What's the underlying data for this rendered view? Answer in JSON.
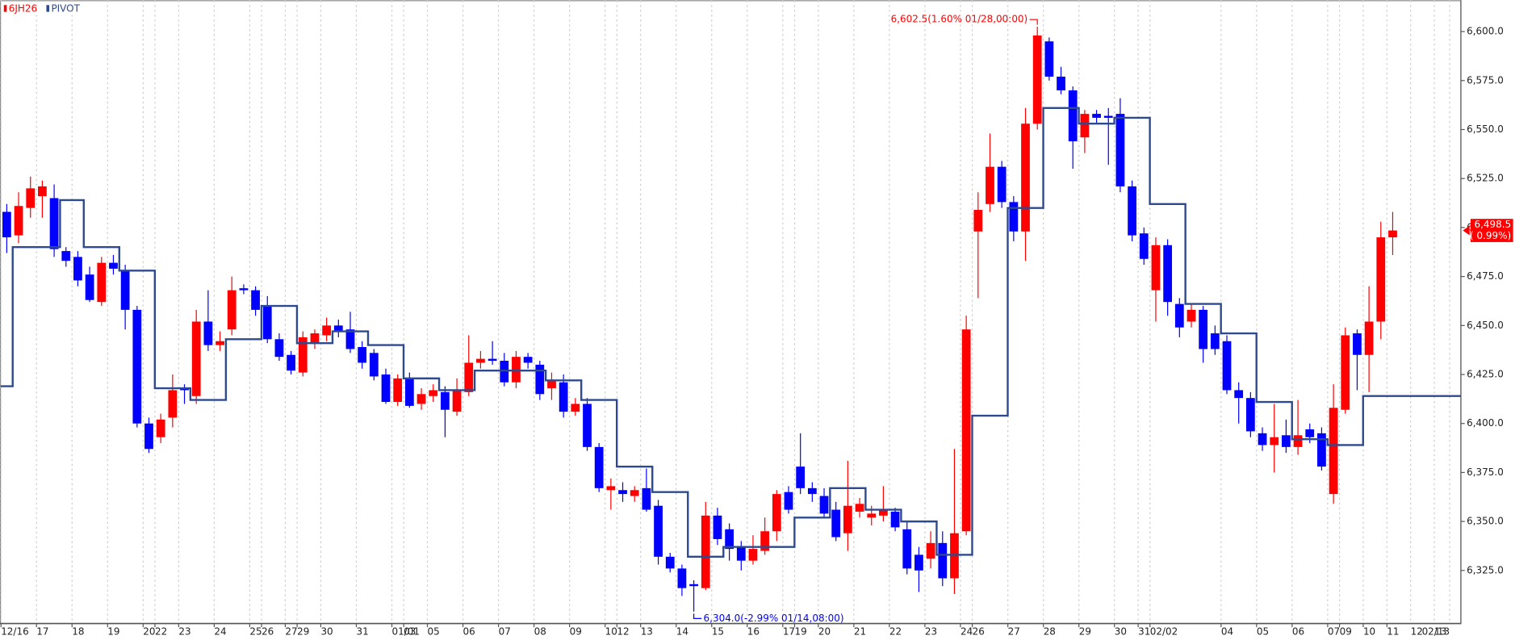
{
  "chart_data": {
    "type": "candlestick",
    "ylim": [
      6298,
      6616
    ],
    "yticks": [
      {
        "value": 6325,
        "label": "6,325.0"
      },
      {
        "value": 6350,
        "label": "6,350.0"
      },
      {
        "value": 6375,
        "label": "6,375.0"
      },
      {
        "value": 6400,
        "label": "6,400.0"
      },
      {
        "value": 6425,
        "label": "6,425.0"
      },
      {
        "value": 6450,
        "label": "6,450.0"
      },
      {
        "value": 6475,
        "label": "6,475.0"
      },
      {
        "value": 6500,
        "label": "6,500.0"
      },
      {
        "value": 6525,
        "label": "6,525.0"
      },
      {
        "value": 6550,
        "label": "6,550.0"
      },
      {
        "value": 6575,
        "label": "6,575.0"
      },
      {
        "value": 6600,
        "label": "6,600.0"
      }
    ],
    "up_color": "#ff0000",
    "down_color": "#0000ff",
    "categories": [
      "12/16",
      null,
      null,
      "17",
      null,
      null,
      "18",
      null,
      null,
      "19",
      null,
      null,
      "20",
      "22",
      null,
      "23",
      null,
      null,
      "24",
      null,
      null,
      "25",
      "26",
      null,
      "27",
      "29",
      null,
      "30",
      null,
      null,
      "31",
      null,
      null,
      "01/01",
      "03",
      null,
      "05",
      null,
      null,
      "06",
      null,
      null,
      "07",
      null,
      null,
      "08",
      null,
      null,
      "09",
      null,
      null,
      "10",
      "12",
      null,
      "13",
      null,
      null,
      "14",
      null,
      null,
      "15",
      null,
      null,
      "16",
      null,
      null,
      "17",
      "19",
      null,
      "20",
      null,
      null,
      "21",
      null,
      null,
      "22",
      null,
      null,
      "23",
      null,
      null,
      "24",
      "26",
      null,
      null,
      "27",
      null,
      null,
      "28",
      null,
      null,
      "29",
      null,
      null,
      "30",
      null,
      "31",
      "02/02",
      null,
      null,
      null,
      null,
      null,
      "04",
      null,
      null,
      "05",
      null,
      null,
      "06",
      null,
      null,
      "07",
      "09",
      null,
      "10",
      null,
      "11"
    ],
    "future_categories": [
      "12",
      "13",
      "02/13"
    ],
    "series": [
      {
        "name": "6JH26",
        "color": "#ff0000",
        "ohlc": [
          [
            6508,
            6512,
            6487,
            6495
          ],
          [
            6496,
            6518,
            6492,
            6511
          ],
          [
            6510,
            6526,
            6505,
            6520
          ],
          [
            6516,
            6524,
            6505,
            6521
          ],
          [
            6515,
            6522,
            6485,
            6489
          ],
          [
            6488,
            6490,
            6480,
            6483
          ],
          [
            6485,
            6488,
            6470,
            6473
          ],
          [
            6476,
            6480,
            6462,
            6463
          ],
          [
            6462,
            6485,
            6460,
            6482
          ],
          [
            6482,
            6486,
            6476,
            6479
          ],
          [
            6478,
            6481,
            6448,
            6458
          ],
          [
            6458,
            6460,
            6398,
            6400
          ],
          [
            6400,
            6403,
            6385,
            6387
          ],
          [
            6393,
            6405,
            6390,
            6402
          ],
          [
            6403,
            6425,
            6398,
            6417
          ],
          [
            6418,
            6420,
            6410,
            6417
          ],
          [
            6414,
            6458,
            6410,
            6452
          ],
          [
            6452,
            6468,
            6437,
            6440
          ],
          [
            6440,
            6447,
            6437,
            6442
          ],
          [
            6448,
            6475,
            6445,
            6468
          ],
          [
            6469,
            6471,
            6466,
            6468
          ],
          [
            6468,
            6470,
            6455,
            6458
          ],
          [
            6460,
            6465,
            6441,
            6443
          ],
          [
            6443,
            6446,
            6432,
            6434
          ],
          [
            6435,
            6437,
            6425,
            6427
          ],
          [
            6426,
            6447,
            6424,
            6444
          ],
          [
            6441,
            6448,
            6438,
            6446
          ],
          [
            6445,
            6454,
            6442,
            6450
          ],
          [
            6450,
            6453,
            6444,
            6447
          ],
          [
            6448,
            6457,
            6436,
            6438
          ],
          [
            6439,
            6442,
            6428,
            6431
          ],
          [
            6436,
            6438,
            6422,
            6424
          ],
          [
            6425,
            6428,
            6410,
            6411
          ],
          [
            6411,
            6425,
            6409,
            6423
          ],
          [
            6423,
            6426,
            6408,
            6409
          ],
          [
            6410,
            6418,
            6407,
            6415
          ],
          [
            6414,
            6420,
            6411,
            6417
          ],
          [
            6416,
            6419,
            6393,
            6407
          ],
          [
            6406,
            6423,
            6404,
            6417
          ],
          [
            6416,
            6445,
            6414,
            6431
          ],
          [
            6431,
            6437,
            6428,
            6433
          ],
          [
            6433,
            6442,
            6430,
            6432
          ],
          [
            6432,
            6436,
            6419,
            6421
          ],
          [
            6421,
            6437,
            6418,
            6434
          ],
          [
            6434,
            6436,
            6428,
            6431
          ],
          [
            6430,
            6432,
            6412,
            6415
          ],
          [
            6418,
            6426,
            6412,
            6422
          ],
          [
            6421,
            6425,
            6403,
            6406
          ],
          [
            6406,
            6413,
            6404,
            6410
          ],
          [
            6410,
            6413,
            6386,
            6388
          ],
          [
            6388,
            6390,
            6365,
            6367
          ],
          [
            6366,
            6372,
            6356,
            6368
          ],
          [
            6366,
            6370,
            6360,
            6364
          ],
          [
            6363,
            6368,
            6360,
            6366
          ],
          [
            6367,
            6377,
            6355,
            6356
          ],
          [
            6358,
            6361,
            6328,
            6332
          ],
          [
            6332,
            6334,
            6324,
            6326
          ],
          [
            6326,
            6328,
            6312,
            6316
          ],
          [
            6318,
            6320,
            6304,
            6317
          ],
          [
            6316,
            6360,
            6315,
            6353
          ],
          [
            6353,
            6357,
            6338,
            6341
          ],
          [
            6346,
            6349,
            6330,
            6336
          ],
          [
            6337,
            6340,
            6325,
            6330
          ],
          [
            6330,
            6343,
            6328,
            6336
          ],
          [
            6335,
            6352,
            6333,
            6345
          ],
          [
            6345,
            6366,
            6340,
            6364
          ],
          [
            6365,
            6368,
            6354,
            6356
          ],
          [
            6378,
            6395,
            6364,
            6367
          ],
          [
            6367,
            6370,
            6360,
            6364
          ],
          [
            6363,
            6367,
            6352,
            6354
          ],
          [
            6356,
            6360,
            6340,
            6342
          ],
          [
            6344,
            6381,
            6335,
            6358
          ],
          [
            6355,
            6362,
            6352,
            6359
          ],
          [
            6352,
            6358,
            6348,
            6354
          ],
          [
            6353,
            6368,
            6350,
            6356
          ],
          [
            6355,
            6357,
            6345,
            6347
          ],
          [
            6346,
            6350,
            6323,
            6326
          ],
          [
            6333,
            6337,
            6314,
            6325
          ],
          [
            6331,
            6345,
            6326,
            6339
          ],
          [
            6339,
            6345,
            6317,
            6321
          ],
          [
            6321,
            6387,
            6313,
            6344
          ],
          [
            6345,
            6455,
            6343,
            6448
          ],
          [
            6498,
            6518,
            6464,
            6509
          ],
          [
            6512,
            6548,
            6508,
            6531
          ],
          [
            6531,
            6534,
            6510,
            6513
          ],
          [
            6513,
            6516,
            6493,
            6498
          ],
          [
            6498,
            6561,
            6483,
            6553
          ],
          [
            6553,
            6602.5,
            6550,
            6598
          ],
          [
            6595,
            6597,
            6575,
            6577
          ],
          [
            6577,
            6582,
            6568,
            6570
          ],
          [
            6570,
            6572,
            6530,
            6544
          ],
          [
            6546,
            6560,
            6538,
            6558
          ],
          [
            6558,
            6560,
            6553,
            6556
          ],
          [
            6557,
            6561,
            6532,
            6556
          ],
          [
            6558,
            6566,
            6518,
            6521
          ],
          [
            6521,
            6524,
            6493,
            6496
          ],
          [
            6497,
            6500,
            6481,
            6484
          ],
          [
            6468,
            6495,
            6452,
            6491
          ],
          [
            6491,
            6494,
            6455,
            6462
          ],
          [
            6461,
            6464,
            6444,
            6449
          ],
          [
            6452,
            6461,
            6449,
            6458
          ],
          [
            6458,
            6460,
            6431,
            6438
          ],
          [
            6446,
            6450,
            6435,
            6438
          ],
          [
            6442,
            6445,
            6415,
            6417
          ],
          [
            6417,
            6421,
            6400,
            6413
          ],
          [
            6413,
            6416,
            6393,
            6396
          ],
          [
            6395,
            6398,
            6386,
            6389
          ],
          [
            6389,
            6410,
            6375,
            6393
          ],
          [
            6394,
            6402,
            6385,
            6388
          ],
          [
            6388,
            6412,
            6384,
            6394
          ],
          [
            6397,
            6400,
            6390,
            6393
          ],
          [
            6395,
            6398,
            6376,
            6378
          ],
          [
            6364,
            6420,
            6359,
            6408
          ],
          [
            6407,
            6449,
            6405,
            6445
          ],
          [
            6446,
            6448,
            6417,
            6435
          ],
          [
            6435,
            6470,
            6416,
            6452
          ],
          [
            6452,
            6503,
            6443,
            6495
          ],
          [
            6495,
            6508,
            6486,
            6498.5
          ]
        ]
      },
      {
        "name": "PIVOT",
        "color": "#2e4a8f",
        "values": [
          6419,
          6490,
          6490,
          6490,
          6490,
          6514,
          6514,
          6490,
          6490,
          6490,
          6478,
          6478,
          6478,
          6418,
          6418,
          6418,
          6412,
          6412,
          6412,
          6443,
          6443,
          6443,
          6460,
          6460,
          6460,
          6441,
          6441,
          6441,
          6447,
          6447,
          6447,
          6440,
          6440,
          6440,
          6423,
          6423,
          6423,
          6417,
          6417,
          6417,
          6427,
          6427,
          6427,
          6427,
          6427,
          6427,
          6422,
          6422,
          6422,
          6412,
          6412,
          6412,
          6378,
          6378,
          6378,
          6365,
          6365,
          6365,
          6332,
          6332,
          6332,
          6337,
          6337,
          6337,
          6337,
          6337,
          6337,
          6352,
          6352,
          6352,
          6367,
          6367,
          6367,
          6356,
          6356,
          6356,
          6350,
          6350,
          6350,
          6333,
          6333,
          6333,
          6404,
          6404,
          6404,
          6510,
          6510,
          6510,
          6561,
          6561,
          6561,
          6553,
          6553,
          6553,
          6556,
          6556,
          6556,
          6512,
          6512,
          6512,
          6461,
          6461,
          6461,
          6446,
          6446,
          6446,
          6411,
          6411,
          6411,
          6392,
          6392,
          6392,
          6389,
          6389,
          6389,
          6414,
          6414,
          6414
        ]
      }
    ],
    "high_annotation": "6,602.5(1.60% 01/28,00:00)",
    "low_annotation": "6,304.0(-2.99% 01/14,08:00)",
    "last_price_label": "6,498.5",
    "last_change_label": "( 0.99%)"
  }
}
